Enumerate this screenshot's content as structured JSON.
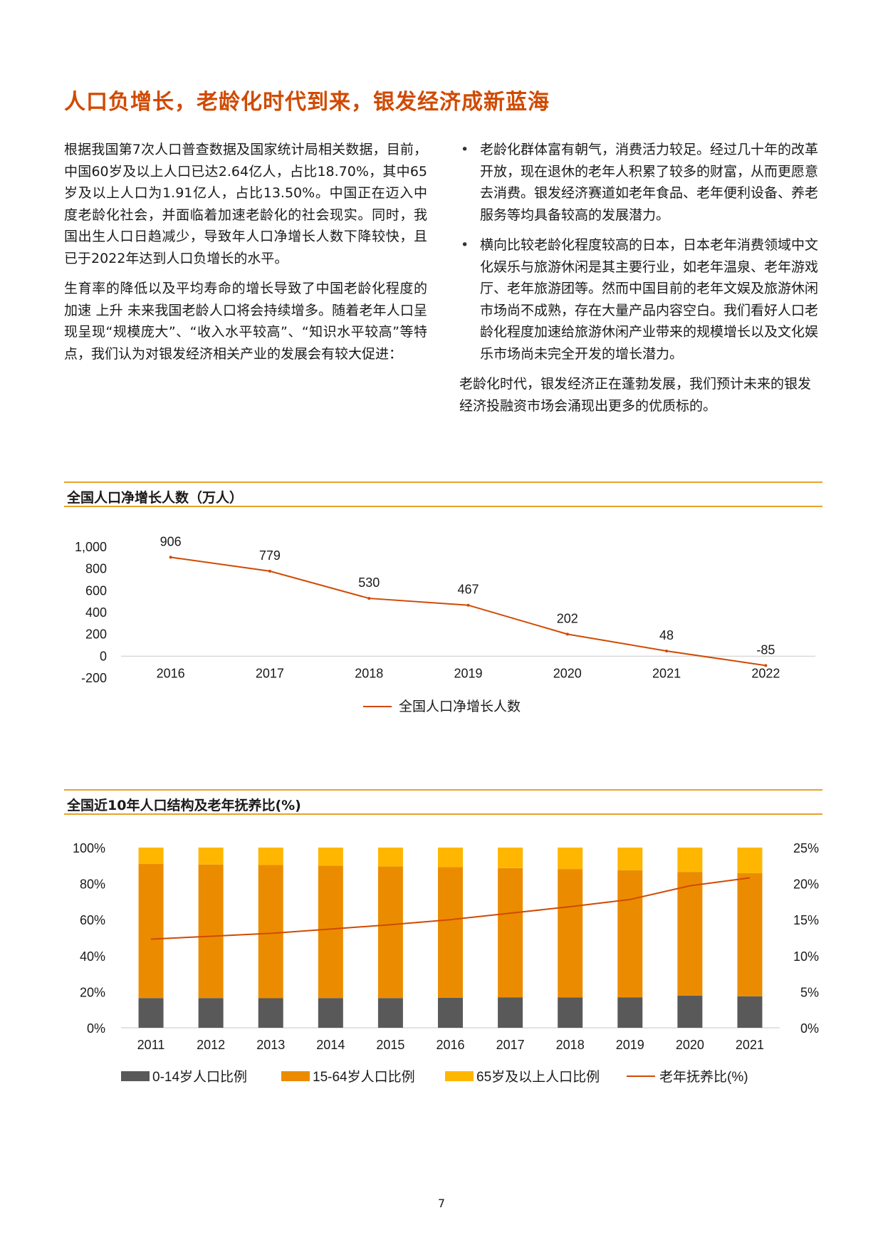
{
  "title": "人口负增长，老龄化时代到来，银发经济成新蓝海",
  "left_column": {
    "paragraphs": [
      "根据我国第7次人口普查数据及国家统计局相关数据，目前，中国60岁及以上人口已达2.64亿人，占比18.70%，其中65岁及以上人口为1.91亿人，占比13.50%。中国正在迈入中度老龄化社会，并面临着加速老龄化的社会现实。同时，我国出生人口日趋减少，导致年人口净增长人数下降较快，且已于2022年达到人口负增长的水平。",
      "生育率的降低以及平均寿命的增长导致了中国老龄化程度的加速 上升 未来我国老龄人口将会持续增多。随着老年人口呈现呈现“规模庞大”、“收入水平较高”、“知识水平较高”等特点，我们认为对银发经济相关产业的发展会有较大促进："
    ]
  },
  "right_column": {
    "bullets": [
      "老龄化群体富有朝气，消费活力较足。经过几十年的改革开放，现在退休的老年人积累了较多的财富，从而更愿意去消费。银发经济赛道如老年食品、老年便利设备、养老服务等均具备较高的发展潜力。",
      "横向比较老龄化程度较高的日本，日本老年消费领域中文化娱乐与旅游休闲是其主要行业，如老年温泉、老年游戏厅、老年旅游团等。然而中国目前的老年文娱及旅游休闲市场尚不成熟，存在大量产品内容空白。我们看好人口老龄化程度加速给旅游休闲产业带来的规模增长以及文化娱乐市场尚未完全开发的增长潜力。"
    ],
    "closing": "老龄化时代，银发经济正在蓬勃发展，我们预计未来的银发经济投融资市场会涌现出更多的优质标的。"
  },
  "chart1_header": "全国人口净增长人数（万人）",
  "chart2_header": "全国近10年人口结构及老年抚养比(%)",
  "page_number": "7",
  "chart_data": [
    {
      "type": "line",
      "title": "全国人口净增长人数（万人）",
      "x": [
        "2016",
        "2017",
        "2018",
        "2019",
        "2020",
        "2021",
        "2022"
      ],
      "series": [
        {
          "name": "全国人口净增长人数",
          "values": [
            906,
            779,
            530,
            467,
            202,
            48,
            -85
          ],
          "color": "#d04a02"
        }
      ],
      "data_labels": [
        "906",
        "779",
        "530",
        "467",
        "202",
        "48",
        "-85"
      ],
      "ylim": [
        -200,
        1000
      ],
      "yticks": [
        "1,000",
        "800",
        "600",
        "400",
        "200",
        "0",
        "-200"
      ],
      "ytick_values": [
        1000,
        800,
        600,
        400,
        200,
        0,
        -200
      ],
      "legend": "bottom",
      "grid": false
    },
    {
      "type": "bar",
      "stacked": true,
      "title": "全国近10年人口结构及老年抚养比(%)",
      "categories": [
        "2011",
        "2012",
        "2013",
        "2014",
        "2015",
        "2016",
        "2017",
        "2018",
        "2019",
        "2020",
        "2021"
      ],
      "series": [
        {
          "name": "0-14岁人口比例",
          "axis": "left",
          "color": "#595959",
          "values": [
            16.5,
            16.5,
            16.4,
            16.5,
            16.5,
            16.7,
            16.8,
            16.9,
            16.8,
            17.9,
            17.5
          ]
        },
        {
          "name": "15-64岁人口比例",
          "axis": "left",
          "color": "#eb8c00",
          "values": [
            74.4,
            74.1,
            73.9,
            73.4,
            73.0,
            72.5,
            71.8,
            71.2,
            70.6,
            68.6,
            68.3
          ]
        },
        {
          "name": "65岁及以上人口比例",
          "axis": "left",
          "color": "#ffb600",
          "values": [
            9.1,
            9.4,
            9.7,
            10.1,
            10.5,
            10.8,
            11.4,
            11.9,
            12.6,
            13.5,
            14.2
          ]
        },
        {
          "name": "老年抚养比(%)",
          "axis": "right",
          "type": "line",
          "color": "#d04a02",
          "values": [
            12.3,
            12.7,
            13.1,
            13.7,
            14.3,
            15.0,
            15.9,
            16.8,
            17.8,
            19.7,
            20.8
          ]
        }
      ],
      "ylim_left": [
        0,
        100
      ],
      "yticks_left": [
        "100%",
        "80%",
        "60%",
        "40%",
        "20%",
        "0%"
      ],
      "ylim_right": [
        0,
        25
      ],
      "yticks_right": [
        "25%",
        "20%",
        "15%",
        "10%",
        "5%",
        "0%"
      ],
      "ytick_values": [
        100,
        80,
        60,
        40,
        20,
        0
      ],
      "legend": "bottom",
      "grid": false
    }
  ]
}
